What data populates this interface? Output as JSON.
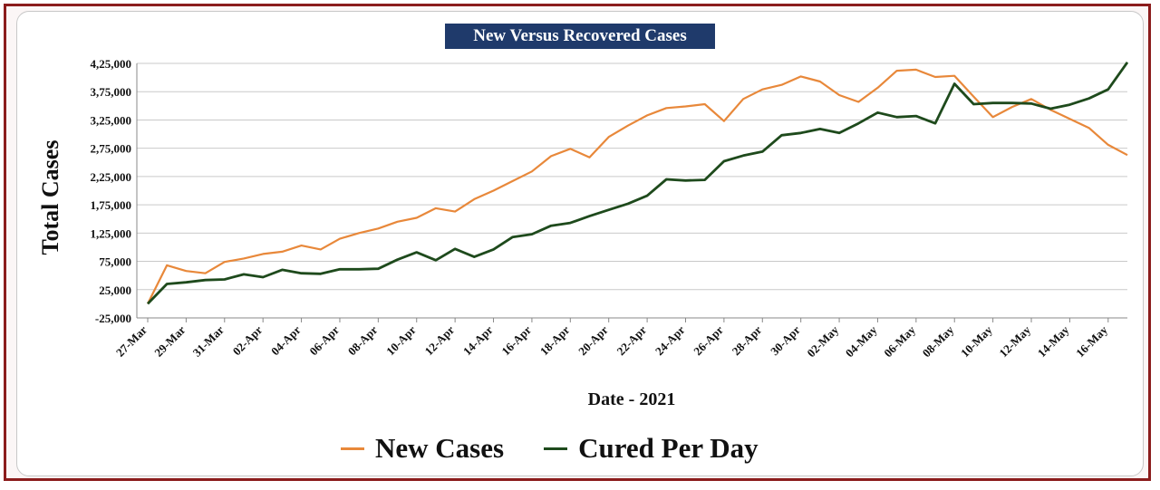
{
  "chart_data": {
    "type": "line",
    "title": "New Versus Recovered Cases",
    "xlabel": "Date - 2021",
    "ylabel": "Total Cases",
    "ylim": [
      -25000,
      425000
    ],
    "yticks": [
      -25000,
      25000,
      75000,
      125000,
      175000,
      225000,
      275000,
      325000,
      375000,
      425000
    ],
    "ytick_labels": [
      "-25,000",
      "25,000",
      "75,000",
      "1,25,000",
      "1,75,000",
      "2,25,000",
      "2,75,000",
      "3,25,000",
      "3,75,000",
      "4,25,000"
    ],
    "xtick_labels": [
      "27-Mar",
      "29-Mar",
      "31-Mar",
      "02-Apr",
      "04-Apr",
      "06-Apr",
      "08-Apr",
      "10-Apr",
      "12-Apr",
      "14-Apr",
      "16-Apr",
      "18-Apr",
      "20-Apr",
      "22-Apr",
      "24-Apr",
      "26-Apr",
      "28-Apr",
      "30-Apr",
      "02-May",
      "04-May",
      "06-May",
      "08-May",
      "10-May",
      "12-May",
      "14-May",
      "16-May"
    ],
    "grid": true,
    "legend": "bottom",
    "series": [
      {
        "name": "New Cases",
        "color": "#e8883a",
        "values": [
          0,
          68000,
          58000,
          54000,
          74000,
          80000,
          88000,
          92000,
          103000,
          96000,
          115000,
          125000,
          133000,
          145000,
          152000,
          169000,
          163000,
          185000,
          200000,
          217000,
          234000,
          261000,
          274000,
          259000,
          295000,
          315000,
          333000,
          346000,
          349000,
          353000,
          323000,
          362000,
          379000,
          387000,
          402000,
          393000,
          369000,
          357000,
          382000,
          412000,
          414000,
          401000,
          403000,
          366000,
          330000,
          348000,
          362000,
          343000,
          327000,
          311000,
          281000,
          263000
        ]
      },
      {
        "name": "Cured Per Day",
        "color": "#1e4a1c",
        "values": [
          0,
          35000,
          38000,
          42000,
          43000,
          52000,
          47000,
          60000,
          54000,
          53000,
          61000,
          61000,
          62000,
          78000,
          91000,
          77000,
          97000,
          83000,
          96000,
          118000,
          123000,
          138000,
          143000,
          155000,
          166000,
          177000,
          191000,
          220000,
          218000,
          219000,
          252000,
          262000,
          269000,
          298000,
          302000,
          309000,
          302000,
          319000,
          338000,
          330000,
          332000,
          319000,
          389000,
          353000,
          355000,
          355000,
          354000,
          345000,
          352000,
          363000,
          379000,
          427000
        ]
      }
    ]
  }
}
